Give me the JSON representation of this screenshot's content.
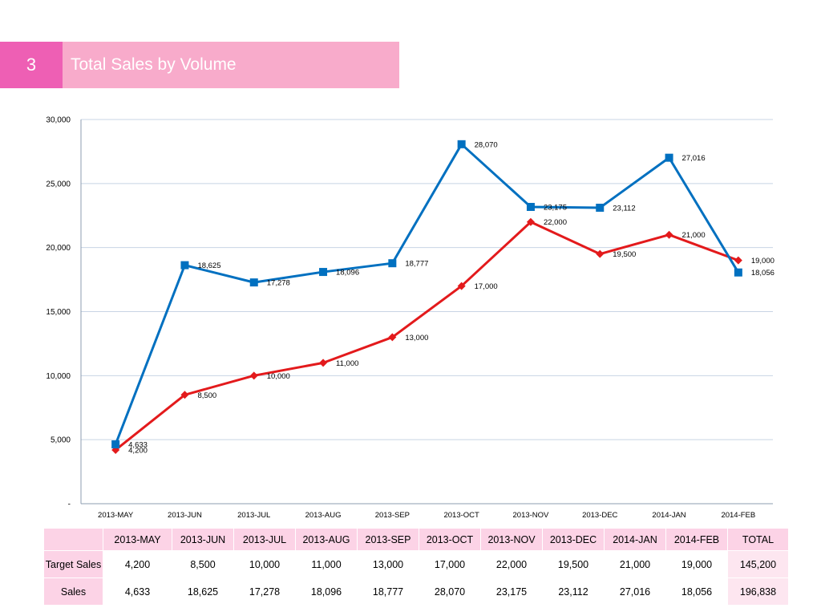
{
  "slide": {
    "number": "3",
    "title": "Total Sales by Volume"
  },
  "colors": {
    "number_block": "#ee5fb4",
    "title_block": "#f8abcb",
    "header_fill": "#fcd3e6",
    "sales_line": "#0070c0",
    "target_line": "#e31a1c",
    "gridline": "#c8d4e4"
  },
  "chart_data": {
    "type": "line",
    "categories": [
      "2013-MAY",
      "2013-JUN",
      "2013-JUL",
      "2013-AUG",
      "2013-SEP",
      "2013-OCT",
      "2013-NOV",
      "2013-DEC",
      "2014-JAN",
      "2014-FEB"
    ],
    "series": [
      {
        "name": "Sales",
        "marker": "square",
        "color": "#0070c0",
        "values": [
          4633,
          18625,
          17278,
          18096,
          18777,
          28070,
          23175,
          23112,
          27016,
          18056
        ],
        "labels": [
          "4,633",
          "18,625",
          "17,278",
          "18,096",
          "18,777",
          "28,070",
          "23,175",
          "23,112",
          "27,016",
          "18,056"
        ]
      },
      {
        "name": "Target Sales",
        "marker": "diamond",
        "color": "#e31a1c",
        "values": [
          4200,
          8500,
          10000,
          11000,
          13000,
          17000,
          22000,
          19500,
          21000,
          19000
        ],
        "labels": [
          "4,200",
          "8,500",
          "10,000",
          "11,000",
          "13,000",
          "17,000",
          "22,000",
          "19,500",
          "21,000",
          "19,000"
        ]
      }
    ],
    "yticks": [
      {
        "value": 0,
        "label": "-"
      },
      {
        "value": 5000,
        "label": "5,000"
      },
      {
        "value": 10000,
        "label": "10,000"
      },
      {
        "value": 15000,
        "label": "15,000"
      },
      {
        "value": 20000,
        "label": "20,000"
      },
      {
        "value": 25000,
        "label": "25,000"
      },
      {
        "value": 30000,
        "label": "30,000"
      }
    ],
    "ylim": [
      0,
      30000
    ],
    "grid": true,
    "legend": "none"
  },
  "table": {
    "headers": [
      "",
      "2013-MAY",
      "2013-JUN",
      "2013-JUL",
      "2013-AUG",
      "2013-SEP",
      "2013-OCT",
      "2013-NOV",
      "2013-DEC",
      "2014-JAN",
      "2014-FEB",
      "TOTAL"
    ],
    "rows": [
      {
        "label": "Target Sales",
        "cells": [
          "4,200",
          "8,500",
          "10,000",
          "11,000",
          "13,000",
          "17,000",
          "22,000",
          "19,500",
          "21,000",
          "19,000",
          "145,200"
        ]
      },
      {
        "label": "Sales",
        "cells": [
          "4,633",
          "18,625",
          "17,278",
          "18,096",
          "18,777",
          "28,070",
          "23,175",
          "23,112",
          "27,016",
          "18,056",
          "196,838"
        ]
      }
    ]
  }
}
